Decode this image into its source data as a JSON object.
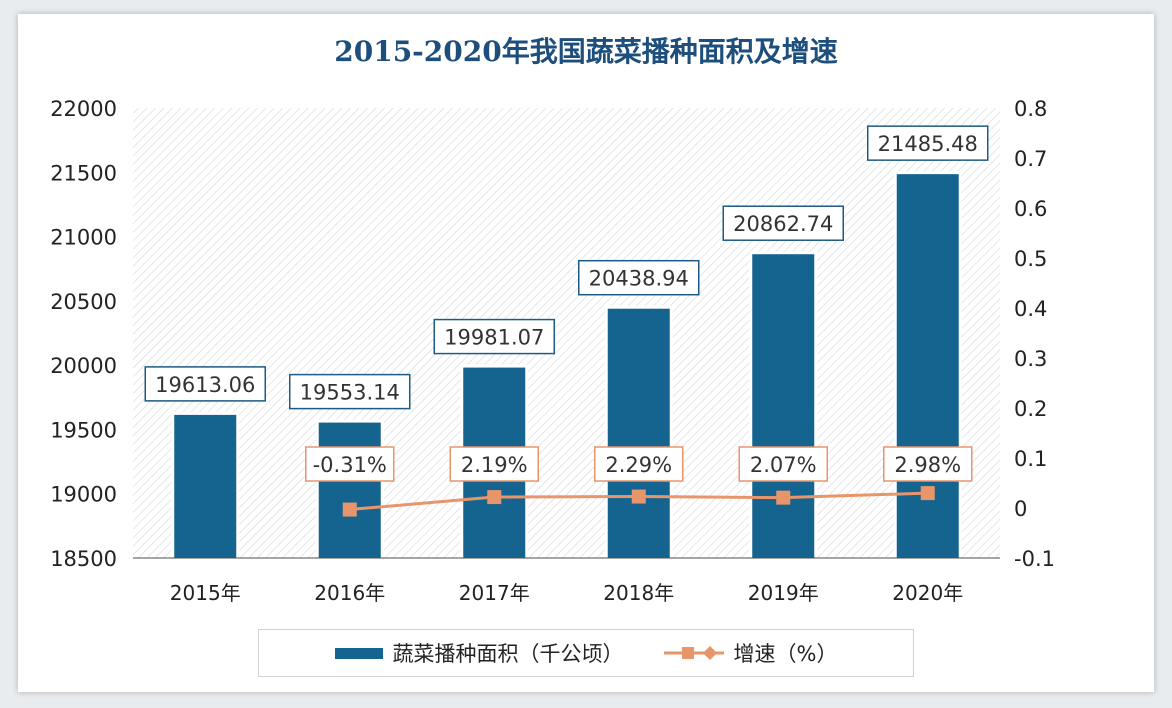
{
  "chart_data": {
    "type": "bar",
    "title": "2015-2020年我国蔬菜播种面积及增速",
    "categories": [
      "2015年",
      "2016年",
      "2017年",
      "2018年",
      "2019年",
      "2020年"
    ],
    "series": [
      {
        "name": "蔬菜播种面积（千公顷）",
        "type": "bar",
        "axis": "left",
        "color": "#15648f",
        "values": [
          19613.06,
          19553.14,
          19981.07,
          20438.94,
          20862.74,
          21485.48
        ],
        "labels": [
          "19613.06",
          "19553.14",
          "19981.07",
          "20438.94",
          "20862.74",
          "21485.48"
        ]
      },
      {
        "name": "增速（%）",
        "type": "line",
        "axis": "right",
        "color": "#e8956b",
        "values": [
          null,
          -0.31,
          2.19,
          2.29,
          2.07,
          2.98
        ],
        "labels": [
          null,
          "-0.31%",
          "2.19%",
          "2.29%",
          "2.07%",
          "2.98%"
        ]
      }
    ],
    "left_axis": {
      "range": [
        18500,
        22000
      ],
      "ticks": [
        "18500",
        "19000",
        "19500",
        "20000",
        "20500",
        "21000",
        "21500",
        "22000"
      ]
    },
    "right_axis": {
      "range": [
        -0.1,
        0.8
      ],
      "ticks": [
        "-0.1",
        "0",
        "0.1",
        "0.2",
        "0.3",
        "0.4",
        "0.5",
        "0.6",
        "0.7",
        "0.8"
      ]
    },
    "grid": false,
    "legend": "bottom"
  }
}
